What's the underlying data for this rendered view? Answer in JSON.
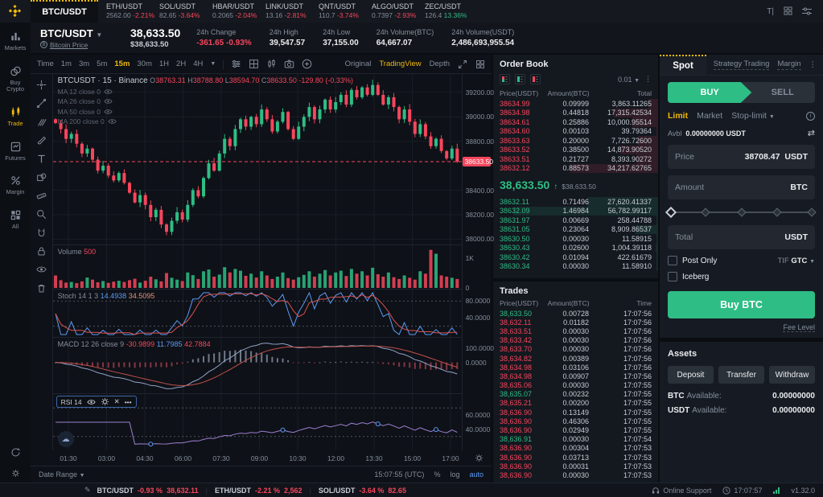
{
  "ticker_bar": {
    "active_pair": "BTC/USDT",
    "tickers": [
      {
        "pair": "ETH/USDT",
        "price": "2562.00",
        "change": "-2.21%",
        "dir": "down"
      },
      {
        "pair": "SOL/USDT",
        "price": "82.65",
        "change": "-3.64%",
        "dir": "down"
      },
      {
        "pair": "HBAR/USDT",
        "price": "0.2065",
        "change": "-2.04%",
        "dir": "down"
      },
      {
        "pair": "LINK/USDT",
        "price": "13.16",
        "change": "-2.81%",
        "dir": "down"
      },
      {
        "pair": "QNT/USDT",
        "price": "110.7",
        "change": "-3.74%",
        "dir": "down"
      },
      {
        "pair": "ALGO/USDT",
        "price": "0.7397",
        "change": "-2.93%",
        "dir": "down"
      },
      {
        "pair": "ZEC/USDT",
        "price": "126.4",
        "change": "13.36%",
        "dir": "up"
      }
    ]
  },
  "sidebar": {
    "items": [
      {
        "label": "Markets",
        "icon": "markets",
        "active": false
      },
      {
        "label": "Buy Crypto",
        "icon": "buycrypto",
        "active": false
      },
      {
        "label": "Trade",
        "icon": "trade",
        "active": true
      },
      {
        "label": "Futures",
        "icon": "futures",
        "active": false
      },
      {
        "label": "Margin",
        "icon": "margin",
        "active": false
      },
      {
        "label": "All",
        "icon": "all",
        "active": false
      }
    ]
  },
  "header": {
    "pair": "BTC/USDT",
    "pair_sub": "Bitcoin Price",
    "coin_glyph": "B",
    "price": "38,633.50",
    "price_usd": "$38,633.50",
    "stats": [
      {
        "label": "24h Change",
        "value": "-361.65 -0.93%",
        "tone": "down"
      },
      {
        "label": "24h High",
        "value": "39,547.57",
        "tone": "plain"
      },
      {
        "label": "24h Low",
        "value": "37,155.00",
        "tone": "plain"
      },
      {
        "label": "24h Volume(BTC)",
        "value": "64,667.07",
        "tone": "plain"
      },
      {
        "label": "24h Volume(USDT)",
        "value": "2,486,693,955.54",
        "tone": "plain"
      }
    ]
  },
  "chart": {
    "toolbar": {
      "time_label": "Time",
      "intervals": [
        "1m",
        "3m",
        "5m",
        "15m",
        "30m",
        "1H",
        "2H",
        "4H"
      ],
      "active_interval": "15m",
      "views": [
        "Original",
        "TradingView",
        "Depth"
      ],
      "active_view": "TradingView"
    },
    "legend": {
      "title": "BTCUSDT · 15 · Binance",
      "ohlc": [
        {
          "k": "O",
          "v": "38763.31"
        },
        {
          "k": "H",
          "v": "38788.80"
        },
        {
          "k": "L",
          "v": "38594.70"
        },
        {
          "k": "C",
          "v": "38633.50"
        }
      ],
      "change": "-129.80 (-0.33%)"
    },
    "ma_rows": [
      "MA 12 close 0",
      "MA 26 close 0",
      "MA 50 close 0",
      "MA 200 close 0"
    ],
    "volume": {
      "label": "Volume",
      "value": "500",
      "axis_top": "1K",
      "axis_bottom": "0"
    },
    "stoch": {
      "label": "Stoch 14 1 3",
      "k": "14.4938",
      "d": "34.5095",
      "axis_top": "80.0000",
      "axis_bottom": "40.0000"
    },
    "macd": {
      "label": "MACD 12 26 close 9",
      "hist": "-30.9899",
      "dif": "11.7985",
      "dea": "42.7884",
      "axis_top": "100.0000",
      "axis_bottom": "0.0000"
    },
    "rsi": {
      "label": "RSI 14",
      "axis_top": "60.0000",
      "axis_bottom": "40.0000"
    },
    "footer": {
      "date_range": "Date Range",
      "clock": "15:07:55 (UTC)",
      "percent": "%",
      "log": "log",
      "auto": "auto"
    },
    "last_price_label": "38633.50"
  },
  "chart_data": {
    "type": "candlestick",
    "symbol": "BTC/USDT",
    "interval": "15m",
    "exchange": "Binance",
    "ylim": [
      37950,
      39350
    ],
    "price_gridlines": [
      39200,
      39000,
      38800,
      38400,
      38200,
      38000
    ],
    "last_price": 38633.5,
    "time_labels": [
      "01:30",
      "03:00",
      "04:30",
      "06:00",
      "07:30",
      "09:00",
      "10:30",
      "12:00",
      "13:30",
      "15:00",
      "17:00"
    ],
    "closes": [
      38950,
      38900,
      38820,
      38860,
      38780,
      38700,
      38740,
      38650,
      38560,
      38600,
      38520,
      38480,
      38540,
      38460,
      38380,
      38300,
      38360,
      38280,
      38180,
      38240,
      38120,
      38060,
      38150,
      38220,
      38160,
      38280,
      38400,
      38350,
      38500,
      38620,
      38560,
      38700,
      38820,
      38760,
      38900,
      38980,
      38920,
      39000,
      38940,
      39060,
      38980,
      38880,
      38960,
      39040,
      38900,
      38820,
      38920,
      39000,
      39080,
      38980,
      39060,
      39140,
      39060,
      39120,
      39180,
      39100,
      39220,
      39160,
      39240,
      39180,
      39260,
      39180,
      39100,
      39160,
      39080,
      38980,
      39060,
      38960,
      38860,
      38940,
      38840,
      38760,
      38820,
      38720,
      38660,
      38740,
      38633.5
    ],
    "volumes": [
      420,
      260,
      180,
      200,
      160,
      220,
      350,
      280,
      190,
      230,
      170,
      210,
      240,
      200,
      260,
      310,
      180,
      240,
      380,
      290,
      220,
      500,
      340,
      280,
      230,
      520,
      430,
      300,
      560,
      620,
      380,
      450,
      700,
      520,
      640,
      580,
      410,
      480,
      350,
      560,
      420,
      300,
      380,
      520,
      330,
      280,
      360,
      440,
      560,
      380,
      480,
      600,
      420,
      520,
      580,
      400,
      640,
      480,
      560,
      420,
      680,
      460,
      380,
      520,
      360,
      300,
      420,
      340,
      280,
      560,
      480,
      1280,
      1150,
      420,
      380,
      340,
      300
    ]
  },
  "order_book": {
    "title": "Order Book",
    "precision": "0.01",
    "columns": [
      "Price(USDT)",
      "Amount(BTC)",
      "Total"
    ],
    "asks": [
      {
        "price": "38634.99",
        "amount": "0.09999",
        "total": "3,863.11265"
      },
      {
        "price": "38634.98",
        "amount": "0.44818",
        "total": "17,315.42534"
      },
      {
        "price": "38634.61",
        "amount": "0.25886",
        "total": "10,000.95514"
      },
      {
        "price": "38634.60",
        "amount": "0.00103",
        "total": "39.79364"
      },
      {
        "price": "38633.63",
        "amount": "0.20000",
        "total": "7,726.72600"
      },
      {
        "price": "38633.52",
        "amount": "0.38500",
        "total": "14,873.90520"
      },
      {
        "price": "38633.51",
        "amount": "0.21727",
        "total": "8,393.90272"
      },
      {
        "price": "38632.12",
        "amount": "0.88573",
        "total": "34,217.62765"
      }
    ],
    "last_price": "38,633.50",
    "last_dir": "up",
    "last_price_usd": "$38,633.50",
    "bids": [
      {
        "price": "38632.11",
        "amount": "0.71496",
        "total": "27,620.41337"
      },
      {
        "price": "38632.09",
        "amount": "1.46984",
        "total": "56,782.99117"
      },
      {
        "price": "38631.97",
        "amount": "0.00669",
        "total": "258.44788"
      },
      {
        "price": "38631.05",
        "amount": "0.23064",
        "total": "8,909.86537"
      },
      {
        "price": "38630.50",
        "amount": "0.00030",
        "total": "11.58915"
      },
      {
        "price": "38630.43",
        "amount": "0.02600",
        "total": "1,004.39118"
      },
      {
        "price": "38630.42",
        "amount": "0.01094",
        "total": "422.61679"
      },
      {
        "price": "38630.34",
        "amount": "0.00030",
        "total": "11.58910"
      }
    ]
  },
  "trades": {
    "title": "Trades",
    "columns": [
      "Price(USDT)",
      "Amount(BTC)",
      "Time"
    ],
    "rows": [
      {
        "price": "38,633.50",
        "amount": "0.00728",
        "time": "17:07:56",
        "side": "up"
      },
      {
        "price": "38,632.11",
        "amount": "0.01182",
        "time": "17:07:56",
        "side": "down"
      },
      {
        "price": "38,633.51",
        "amount": "0.00030",
        "time": "17:07:56",
        "side": "down"
      },
      {
        "price": "38,633.42",
        "amount": "0.00030",
        "time": "17:07:56",
        "side": "down"
      },
      {
        "price": "38,633.70",
        "amount": "0.00030",
        "time": "17:07:56",
        "side": "down"
      },
      {
        "price": "38,634.82",
        "amount": "0.00389",
        "time": "17:07:56",
        "side": "down"
      },
      {
        "price": "38,634.98",
        "amount": "0.03106",
        "time": "17:07:56",
        "side": "down"
      },
      {
        "price": "38,634.98",
        "amount": "0.00907",
        "time": "17:07:56",
        "side": "down"
      },
      {
        "price": "38,635.06",
        "amount": "0.00030",
        "time": "17:07:55",
        "side": "down"
      },
      {
        "price": "38,635.07",
        "amount": "0.00232",
        "time": "17:07:55",
        "side": "up"
      },
      {
        "price": "38,635.21",
        "amount": "0.00200",
        "time": "17:07:55",
        "side": "down"
      },
      {
        "price": "38,636.90",
        "amount": "0.13149",
        "time": "17:07:55",
        "side": "down"
      },
      {
        "price": "38,636.90",
        "amount": "0.46306",
        "time": "17:07:55",
        "side": "down"
      },
      {
        "price": "38,636.90",
        "amount": "0.02949",
        "time": "17:07:55",
        "side": "down"
      },
      {
        "price": "38,636.91",
        "amount": "0.00030",
        "time": "17:07:54",
        "side": "up"
      },
      {
        "price": "38,636.90",
        "amount": "0.00304",
        "time": "17:07:53",
        "side": "down"
      },
      {
        "price": "38,636.90",
        "amount": "0.03713",
        "time": "17:07:53",
        "side": "down"
      },
      {
        "price": "38,636.90",
        "amount": "0.00031",
        "time": "17:07:53",
        "side": "down"
      },
      {
        "price": "38,636.90",
        "amount": "0.00030",
        "time": "17:07:53",
        "side": "down"
      }
    ]
  },
  "trade_panel": {
    "tabs": [
      "Spot",
      "Strategy Trading",
      "Margin"
    ],
    "buy_label": "BUY",
    "sell_label": "SELL",
    "order_types": [
      "Limit",
      "Market",
      "Stop-limit"
    ],
    "active_type": "Limit",
    "avbl_label": "Avbl",
    "avbl_value": "0.00000000 USDT",
    "price_label": "Price",
    "price_value": "38708.47",
    "price_unit": "USDT",
    "amount_label": "Amount",
    "amount_unit": "BTC",
    "total_label": "Total",
    "total_unit": "USDT",
    "post_only": "Post Only",
    "iceberg": "Iceberg",
    "tif_label": "TIF",
    "tif_value": "GTC",
    "submit": "Buy BTC",
    "fee_level": "Fee Level"
  },
  "assets": {
    "title": "Assets",
    "buttons": [
      "Deposit",
      "Transfer",
      "Withdraw"
    ],
    "rows": [
      {
        "asset": "BTC",
        "label": "Available:",
        "value": "0.00000000"
      },
      {
        "asset": "USDT",
        "label": "Available:",
        "value": "0.00000000"
      }
    ]
  },
  "status_bar": {
    "pairs": [
      {
        "pair": "BTC/USDT",
        "change": "-0.93 %",
        "price": "38,632.11"
      },
      {
        "pair": "ETH/USDT",
        "change": "-2.21 %",
        "price": "2,562"
      },
      {
        "pair": "SOL/USDT",
        "change": "-3.64 %",
        "price": "82.65"
      }
    ],
    "support": "Online Support",
    "time": "17:07:57",
    "version": "v1.32.0"
  }
}
